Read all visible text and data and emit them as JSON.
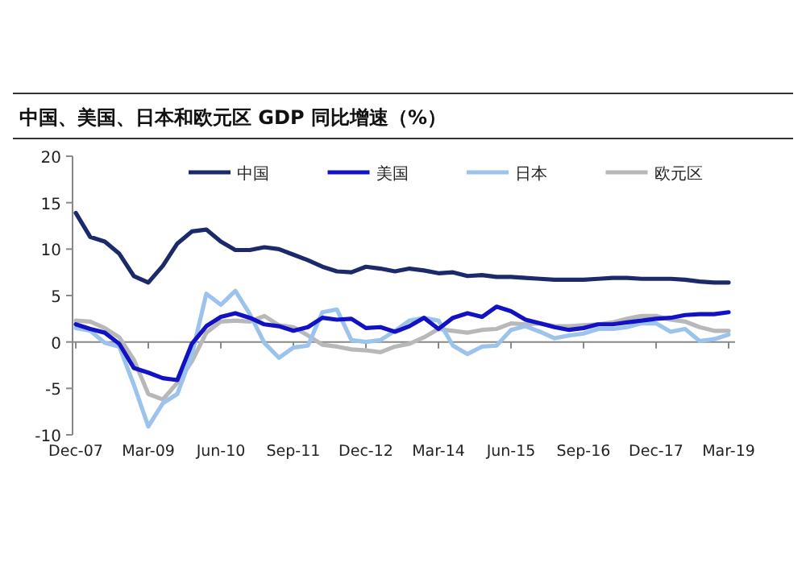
{
  "chart_data": {
    "type": "line",
    "title": "中国、美国、日本和欧元区 GDP 同比增速（%）",
    "legend": "top",
    "categories": [
      "Dec-07",
      null,
      null,
      null,
      null,
      "Mar-09",
      null,
      null,
      null,
      null,
      "Jun-10",
      null,
      null,
      null,
      null,
      "Sep-11",
      null,
      null,
      null,
      null,
      "Dec-12",
      null,
      null,
      null,
      null,
      "Mar-14",
      null,
      null,
      null,
      null,
      "Jun-15",
      null,
      null,
      null,
      null,
      "Sep-16",
      null,
      null,
      null,
      null,
      "Dec-17",
      null,
      null,
      null,
      null,
      "Mar-19"
    ],
    "ylim": [
      -10,
      20
    ],
    "yticks": [
      -10,
      -5,
      0,
      5,
      10,
      15,
      20
    ],
    "series": [
      {
        "name": "中国",
        "color": "#1c2a6b",
        "values": [
          13.9,
          11.3,
          10.8,
          9.5,
          7.1,
          6.4,
          8.2,
          10.6,
          11.9,
          12.1,
          10.8,
          9.9,
          9.9,
          10.2,
          10.0,
          9.4,
          8.8,
          8.1,
          7.6,
          7.5,
          8.1,
          7.9,
          7.6,
          7.9,
          7.7,
          7.4,
          7.5,
          7.1,
          7.2,
          7.0,
          7.0,
          6.9,
          6.8,
          6.7,
          6.7,
          6.7,
          6.8,
          6.9,
          6.9,
          6.8,
          6.8,
          6.8,
          6.7,
          6.5,
          6.4,
          6.4
        ]
      },
      {
        "name": "美国",
        "color": "#1212c4",
        "values": [
          1.9,
          1.4,
          1.0,
          -0.2,
          -2.8,
          -3.3,
          -3.9,
          -4.1,
          -0.2,
          1.7,
          2.7,
          3.1,
          2.6,
          1.9,
          1.7,
          1.2,
          1.6,
          2.6,
          2.4,
          2.5,
          1.5,
          1.6,
          1.1,
          1.7,
          2.6,
          1.4,
          2.6,
          3.1,
          2.7,
          3.8,
          3.3,
          2.4,
          2.0,
          1.6,
          1.3,
          1.5,
          1.9,
          1.9,
          2.1,
          2.3,
          2.5,
          2.6,
          2.9,
          3.0,
          3.0,
          3.2
        ]
      },
      {
        "name": "日本",
        "color": "#9cc3ec",
        "values": [
          1.5,
          1.2,
          -0.1,
          -0.5,
          -4.6,
          -9.1,
          -6.6,
          -5.6,
          -1.4,
          5.2,
          4.0,
          5.5,
          3.0,
          -0.1,
          -1.7,
          -0.6,
          -0.4,
          3.2,
          3.5,
          0.2,
          0.0,
          0.2,
          1.2,
          2.3,
          2.6,
          2.3,
          -0.4,
          -1.3,
          -0.5,
          -0.4,
          1.3,
          1.7,
          1.1,
          0.4,
          0.7,
          0.9,
          1.4,
          1.4,
          1.6,
          2.0,
          2.0,
          1.1,
          1.4,
          0.1,
          0.3,
          0.8
        ]
      },
      {
        "name": "欧元区",
        "color": "#b8b8b8",
        "values": [
          2.3,
          2.2,
          1.5,
          0.5,
          -1.9,
          -5.6,
          -6.2,
          -4.4,
          -2.1,
          1.0,
          2.2,
          2.3,
          2.2,
          2.8,
          1.8,
          1.6,
          0.7,
          -0.3,
          -0.5,
          -0.8,
          -0.9,
          -1.1,
          -0.5,
          -0.2,
          0.5,
          1.4,
          1.2,
          1.0,
          1.3,
          1.4,
          2.0,
          1.9,
          2.0,
          1.7,
          1.7,
          1.8,
          1.9,
          2.1,
          2.5,
          2.8,
          2.8,
          2.4,
          2.2,
          1.6,
          1.2,
          1.2
        ]
      }
    ]
  }
}
